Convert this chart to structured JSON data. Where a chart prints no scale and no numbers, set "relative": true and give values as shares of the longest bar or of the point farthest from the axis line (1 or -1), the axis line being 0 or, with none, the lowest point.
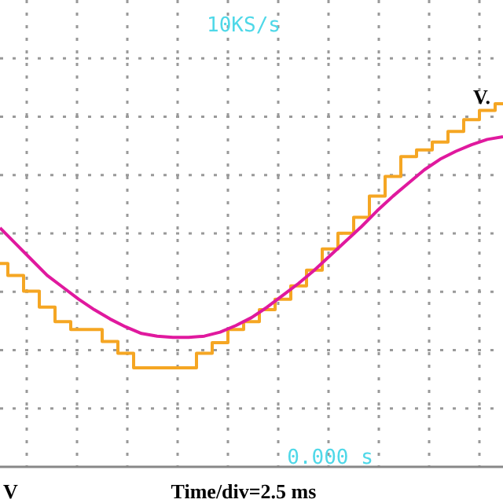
{
  "chart_data": {
    "type": "line",
    "relative": true,
    "annotations": [
      "10KS/s",
      "0.000 s",
      "V",
      "V.",
      "Time/div=2.5 ms"
    ],
    "categories": [
      null,
      null,
      null,
      null,
      null,
      null,
      null,
      null,
      null,
      null,
      null,
      null,
      null,
      null,
      null,
      null,
      null,
      null,
      null,
      null,
      null,
      null,
      null,
      null,
      null,
      null,
      null,
      null,
      null,
      null,
      null,
      null,
      null
    ],
    "series": [
      {
        "type": "step",
        "color": "#f5a623",
        "values": [
          -0.21,
          -0.3,
          -0.42,
          -0.54,
          -0.65,
          -0.71,
          -0.71,
          -0.8,
          -0.89,
          -1,
          -1,
          -1,
          -1,
          -0.89,
          -0.81,
          -0.71,
          -0.65,
          -0.56,
          -0.48,
          -0.38,
          -0.26,
          -0.1,
          0.02,
          0.14,
          0.3,
          0.45,
          0.6,
          0.65,
          0.71,
          0.79,
          0.88,
          0.95,
          1
        ]
      },
      {
        "color": "#e0199e",
        "values": [
          0.06,
          -0.06,
          -0.18,
          -0.3,
          -0.39,
          -0.48,
          -0.56,
          -0.63,
          -0.69,
          -0.74,
          -0.76,
          -0.77,
          -0.77,
          -0.76,
          -0.73,
          -0.68,
          -0.62,
          -0.54,
          -0.45,
          -0.36,
          -0.26,
          -0.15,
          -0.04,
          0.07,
          0.19,
          0.3,
          0.4,
          0.5,
          0.58,
          0.64,
          0.69,
          0.73,
          0.75
        ]
      }
    ],
    "grid": true,
    "line_style": "solid"
  }
}
